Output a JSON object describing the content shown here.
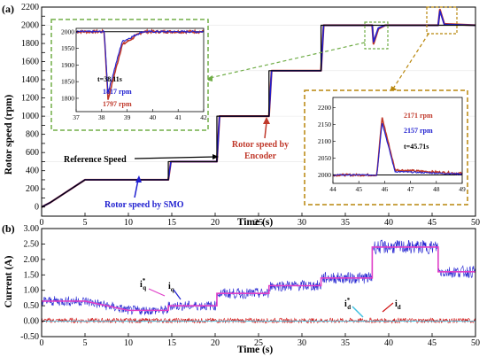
{
  "chart_data": [
    {
      "type": "line",
      "panel_label": "(a)",
      "xlabel": "Time (s)",
      "ylabel": "Rotor speed (rpm)",
      "xlim": [
        0,
        50
      ],
      "ylim": [
        -100,
        2200
      ],
      "x_ticks": [
        "0",
        "5",
        "10",
        "15",
        "20",
        "25",
        "30",
        "35",
        "40",
        "45",
        "50"
      ],
      "y_ticks": [
        "0",
        "100",
        "200",
        "300",
        "400",
        "500",
        "600",
        "700",
        "800",
        "900",
        "1000",
        "1100",
        "1200",
        "1300",
        "1400",
        "1500",
        "1600",
        "1700",
        "1800",
        "1900",
        "2000",
        "2100",
        "2200"
      ],
      "series": [
        {
          "name": "Reference Speed",
          "color": "#000000",
          "x": [
            0,
            1,
            5,
            14.6,
            14.6,
            20.2,
            20.2,
            26.2,
            26.2,
            32.2,
            32.2,
            50
          ],
          "y": [
            0,
            50,
            300,
            300,
            500,
            500,
            1000,
            1000,
            1500,
            1500,
            2000,
            2000
          ]
        },
        {
          "name": "Rotor speed by SMO",
          "color": "#1f1fd0",
          "x": [
            0,
            1,
            5,
            14.6,
            14.9,
            20.2,
            20.5,
            26.2,
            26.5,
            32.2,
            32.5,
            38.1,
            38.25,
            38.8,
            39.6,
            45.7,
            45.9,
            46.4,
            50
          ],
          "y": [
            0,
            50,
            300,
            300,
            500,
            500,
            1000,
            1000,
            1500,
            1500,
            2000,
            2000,
            1817,
            1970,
            2000,
            2000,
            2157,
            2010,
            2000
          ]
        },
        {
          "name": "Rotor speed by Encoder",
          "color": "#c0392b",
          "x": [
            0,
            1,
            5,
            14.6,
            14.9,
            20.2,
            20.5,
            26.2,
            26.5,
            32.2,
            32.5,
            38.1,
            38.25,
            38.8,
            39.6,
            45.7,
            45.9,
            46.4,
            50
          ],
          "y": [
            0,
            50,
            300,
            300,
            500,
            500,
            1000,
            1000,
            1500,
            1500,
            2000,
            2000,
            1797,
            1960,
            2000,
            2000,
            2171,
            2015,
            2000
          ]
        }
      ],
      "annotations": [
        {
          "text": "Reference Speed",
          "color": "#000000"
        },
        {
          "text": "Rotor speed by Encoder",
          "color": "#c0392b"
        },
        {
          "text": "Rotor speed by SMO",
          "color": "#1f1fd0"
        }
      ],
      "insets": [
        {
          "border_color": "#70ad47",
          "xlim": [
            37,
            42
          ],
          "ylim": [
            1760,
            2010
          ],
          "x_ticks": [
            "37",
            "38",
            "39",
            "40",
            "41",
            "42"
          ],
          "y_ticks": [
            "1800",
            "1850",
            "1900",
            "1950",
            "2000"
          ],
          "labels": [
            {
              "text": "t=38.11s",
              "color": "#000000"
            },
            {
              "text": "1817 rpm",
              "color": "#1f1fd0"
            },
            {
              "text": "1797 rpm",
              "color": "#c0392b"
            }
          ]
        },
        {
          "border_color": "#b8860b",
          "xlim": [
            44,
            49
          ],
          "ylim": [
            1975,
            2230
          ],
          "x_ticks": [
            "44",
            "45",
            "46",
            "47",
            "48",
            "49"
          ],
          "y_ticks": [
            "2000",
            "2050",
            "2100",
            "2150",
            "2200"
          ],
          "labels": [
            {
              "text": "2171 rpm",
              "color": "#c0392b"
            },
            {
              "text": "2157 rpm",
              "color": "#1f1fd0"
            },
            {
              "text": "t=45.71s",
              "color": "#000000"
            }
          ]
        }
      ]
    },
    {
      "type": "line",
      "panel_label": "(b)",
      "xlabel": "Time (s)",
      "ylabel": "Current (A)",
      "xlim": [
        0,
        50
      ],
      "ylim": [
        -0.5,
        3.0
      ],
      "x_ticks": [
        "0",
        "5",
        "10",
        "15",
        "20",
        "25",
        "30",
        "35",
        "40",
        "45",
        "50"
      ],
      "y_ticks": [
        "-0.50",
        "0.00",
        "0.50",
        "1.00",
        "1.50",
        "2.00",
        "2.50",
        "3.00"
      ],
      "series": [
        {
          "name": "i_q*",
          "color": "#e040c8",
          "x": [
            0,
            5,
            10,
            14.6,
            14.6,
            20.2,
            20.2,
            26.2,
            26.2,
            32.2,
            32.2,
            38.1,
            38.1,
            45.7,
            45.7,
            50
          ],
          "y": [
            0.65,
            0.65,
            0.35,
            0.35,
            0.5,
            0.5,
            0.9,
            0.9,
            1.15,
            1.15,
            1.4,
            1.4,
            2.4,
            2.4,
            1.6,
            1.6
          ]
        },
        {
          "name": "i_q",
          "color": "#1f1fd0",
          "x": [
            0,
            5,
            10,
            14.6,
            14.6,
            20.2,
            20.2,
            26.2,
            26.2,
            32.2,
            32.2,
            38.1,
            38.1,
            45.7,
            45.7,
            50
          ],
          "y": [
            0.65,
            0.65,
            0.35,
            0.35,
            0.5,
            0.5,
            0.9,
            0.9,
            1.15,
            1.15,
            1.4,
            1.4,
            2.4,
            2.4,
            1.6,
            1.6
          ]
        },
        {
          "name": "i_d*",
          "color": "#40c0e0",
          "x": [
            0,
            50
          ],
          "y": [
            0,
            0
          ]
        },
        {
          "name": "i_d",
          "color": "#d01818",
          "x": [
            0,
            50
          ],
          "y": [
            0.02,
            0.02
          ]
        }
      ],
      "annotations": [
        {
          "text": "i",
          "sub": "q",
          "sup": "*",
          "color": "#000000"
        },
        {
          "text": "i",
          "sub": "q",
          "color": "#000000"
        },
        {
          "text": "i",
          "sub": "d",
          "sup": "*",
          "color": "#000000"
        },
        {
          "text": "i",
          "sub": "d",
          "color": "#000000"
        }
      ]
    }
  ]
}
